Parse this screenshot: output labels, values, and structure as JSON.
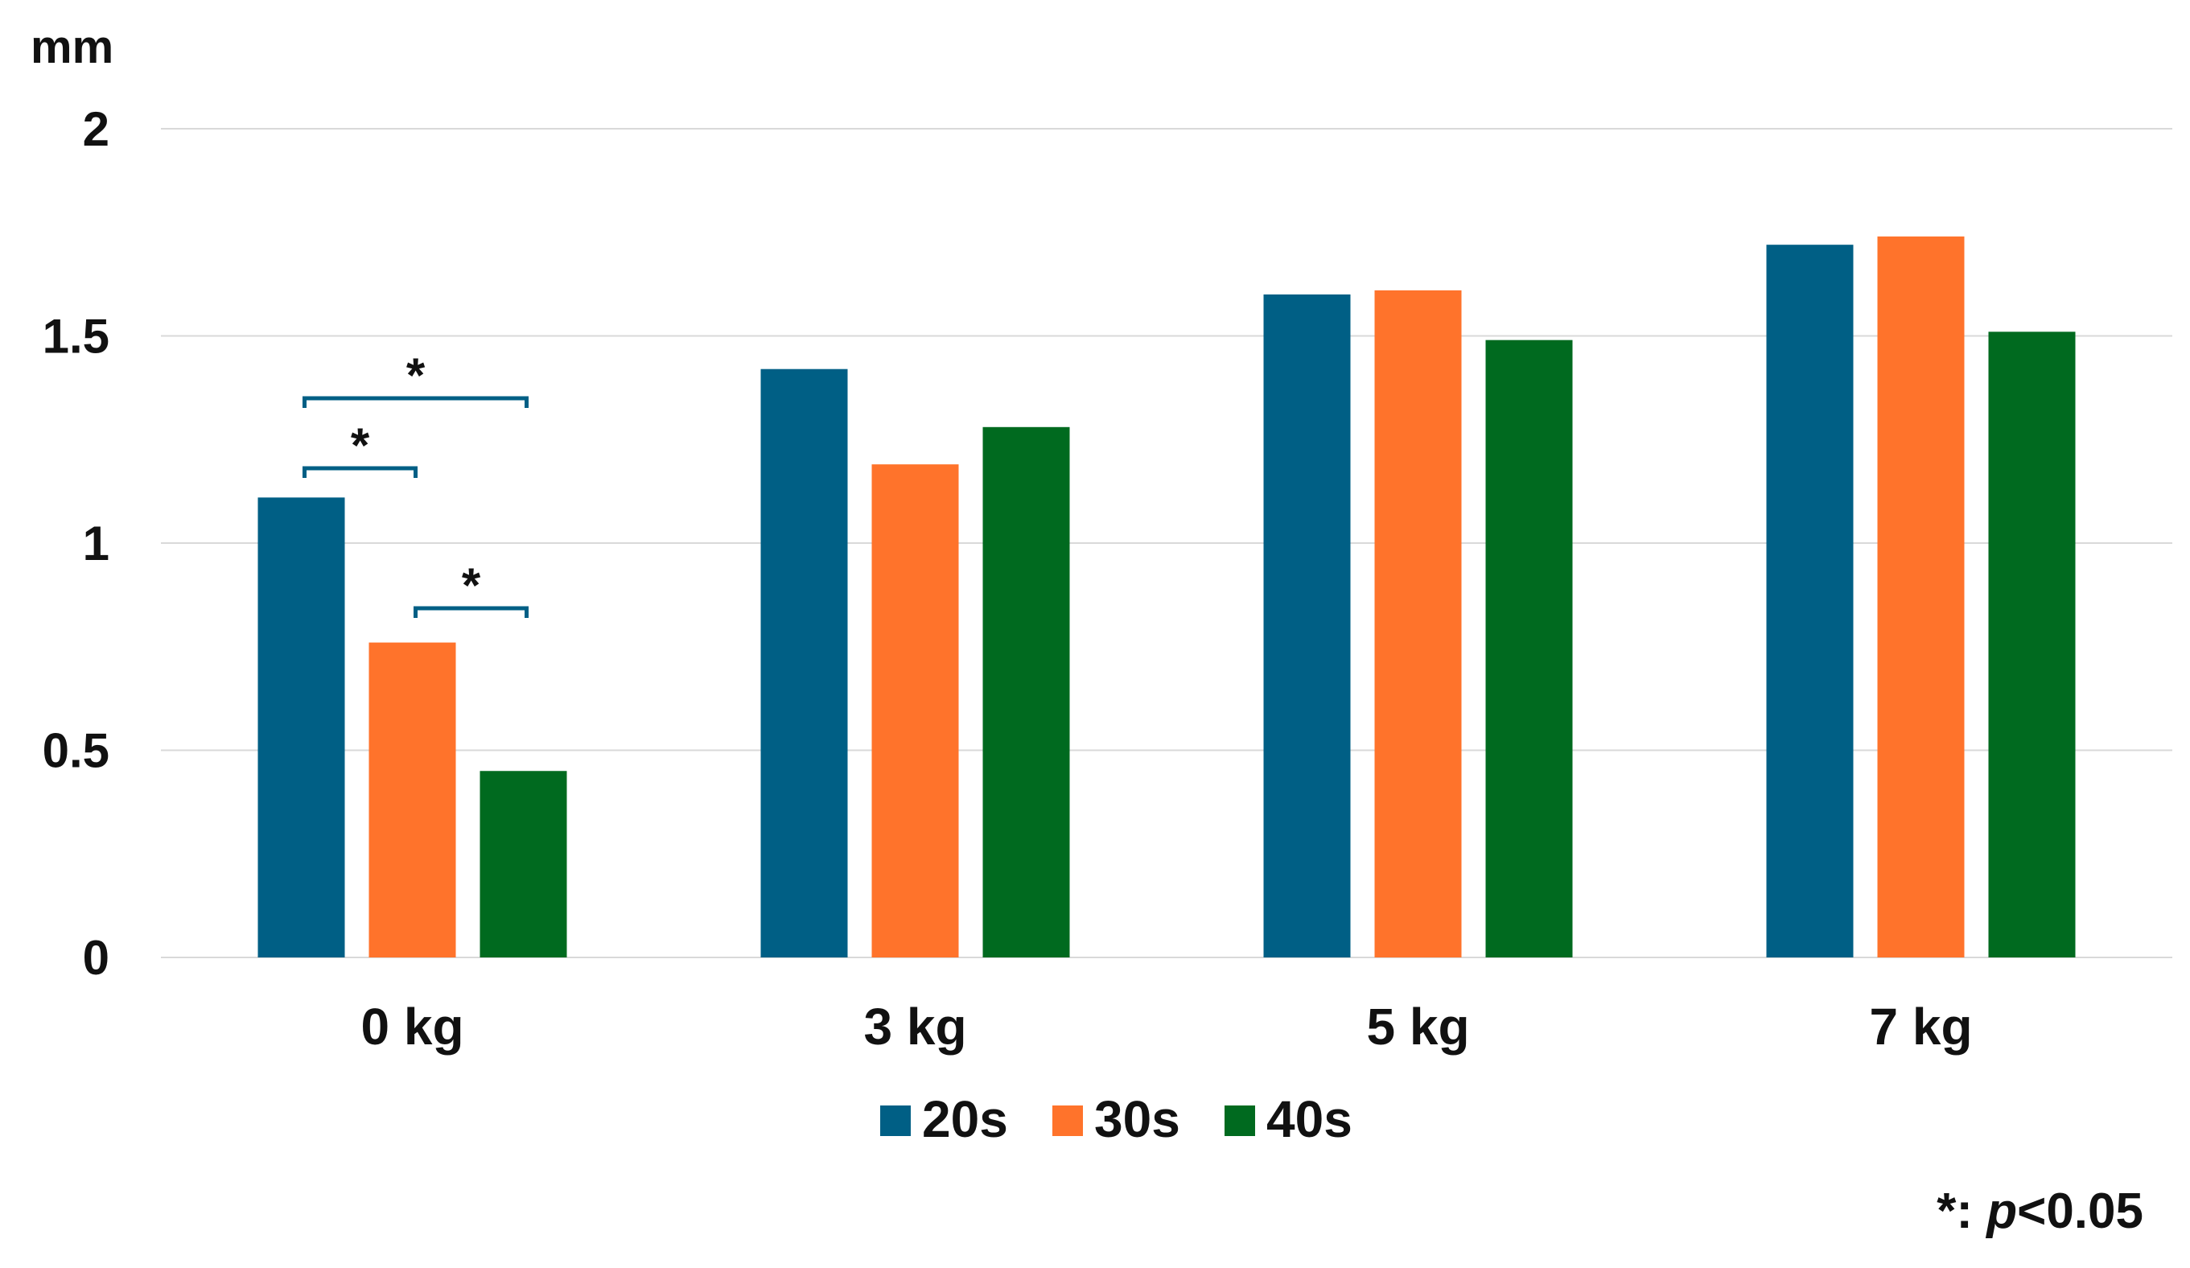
{
  "chart_data": {
    "type": "bar",
    "ylabel": "mm",
    "ylim": [
      0,
      2
    ],
    "yticks": [
      "0",
      "0.5",
      "1",
      "1.5",
      "2"
    ],
    "grid": true,
    "categories": [
      "0 kg",
      "3 kg",
      "5 kg",
      "7 kg"
    ],
    "series": [
      {
        "name": "20s",
        "color": "#005F85",
        "values": [
          1.11,
          1.42,
          1.6,
          1.72
        ]
      },
      {
        "name": "30s",
        "color": "#FF732B",
        "values": [
          0.76,
          1.19,
          1.61,
          1.74
        ]
      },
      {
        "name": "40s",
        "color": "#006A1F",
        "values": [
          0.45,
          1.28,
          1.49,
          1.51
        ]
      }
    ],
    "legend_position": "bottom",
    "significance": [
      {
        "category": "0 kg",
        "from": "20s",
        "to": "40s",
        "label": "*"
      },
      {
        "category": "0 kg",
        "from": "20s",
        "to": "30s",
        "label": "*"
      },
      {
        "category": "0 kg",
        "from": "30s",
        "to": "40s",
        "label": "*"
      }
    ],
    "bracket_color": "#005F85",
    "footnote": {
      "symbol": "*:",
      "variable": "p",
      "threshold": "<0.05"
    }
  }
}
